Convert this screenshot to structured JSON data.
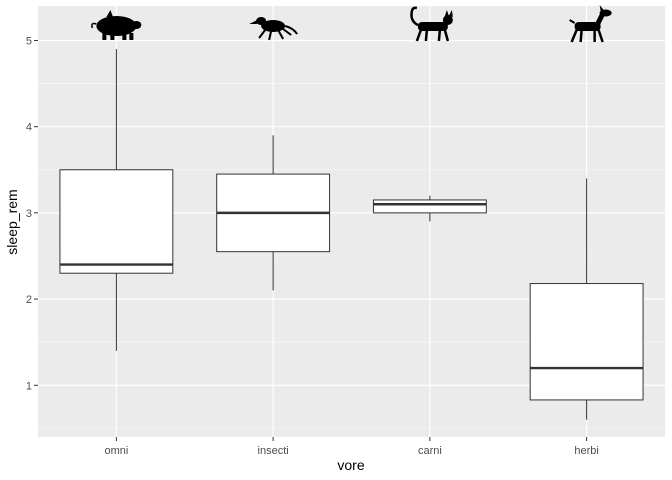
{
  "chart_data": {
    "type": "box",
    "xlabel": "vore",
    "ylabel": "sleep_rem",
    "categories": [
      "omni",
      "insecti",
      "carni",
      "herbi"
    ],
    "ylim": [
      0.4,
      5.4
    ],
    "yticks": [
      1,
      2,
      3,
      4,
      5
    ],
    "grid": true,
    "colors": {
      "panel": "#ebebeb",
      "grid_major": "#ffffff",
      "grid_minor": "#f5f5f5",
      "box_fill": "#ffffff",
      "box_stroke": "#333333",
      "icon": "#000000"
    },
    "boxes": [
      {
        "category": "omni",
        "whisker_low": 1.4,
        "q1": 2.3,
        "median": 2.4,
        "q3": 3.5,
        "whisker_high": 4.9,
        "icon": "pig-icon"
      },
      {
        "category": "insecti",
        "whisker_low": 2.1,
        "q1": 2.55,
        "median": 3.0,
        "q3": 3.45,
        "whisker_high": 3.9,
        "icon": "insectivore-icon"
      },
      {
        "category": "carni",
        "whisker_low": 2.9,
        "q1": 3.0,
        "median": 3.1,
        "q3": 3.15,
        "whisker_high": 3.2,
        "icon": "cat-icon"
      },
      {
        "category": "herbi",
        "whisker_low": 0.6,
        "q1": 0.83,
        "median": 1.2,
        "q3": 2.18,
        "whisker_high": 3.4,
        "icon": "deer-icon"
      }
    ]
  }
}
